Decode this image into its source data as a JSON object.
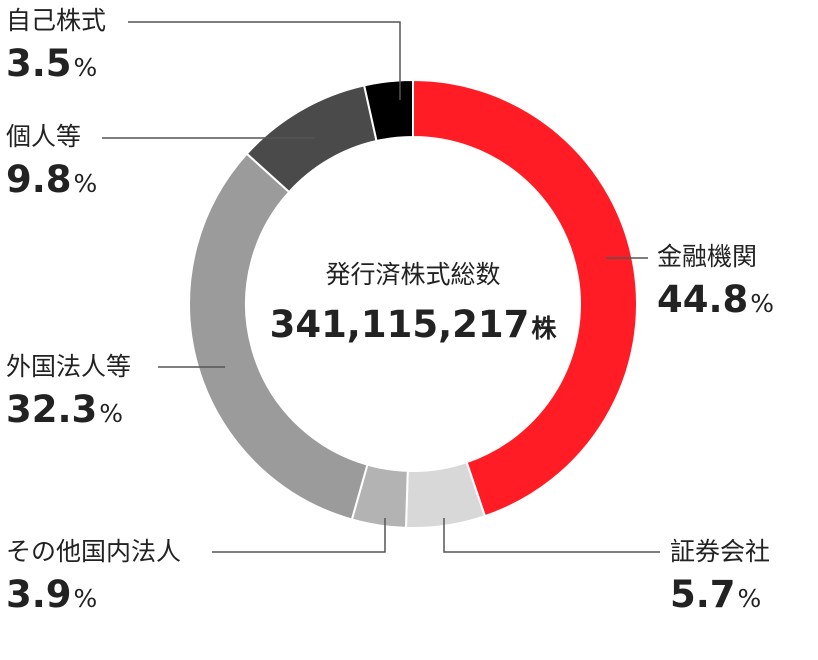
{
  "chart_data": {
    "type": "pie",
    "center_title": "発行済株式総数",
    "center_value": "341,115,217",
    "center_unit": "株",
    "unit": "%",
    "segments": [
      {
        "name": "金融機関",
        "value": 44.8,
        "value_label": "44.8",
        "color": "#ff1c24"
      },
      {
        "name": "証券会社",
        "value": 5.7,
        "value_label": "5.7",
        "color": "#d8d8d8"
      },
      {
        "name": "その他国内法人",
        "value": 3.9,
        "value_label": "3.9",
        "color": "#b3b3b3"
      },
      {
        "name": "外国法人等",
        "value": 32.3,
        "value_label": "32.3",
        "color": "#9b9b9b"
      },
      {
        "name": "個人等",
        "value": 9.8,
        "value_label": "9.8",
        "color": "#4a4a4a"
      },
      {
        "name": "自己株式",
        "value": 3.5,
        "value_label": "3.5",
        "color": "#000000"
      }
    ]
  }
}
